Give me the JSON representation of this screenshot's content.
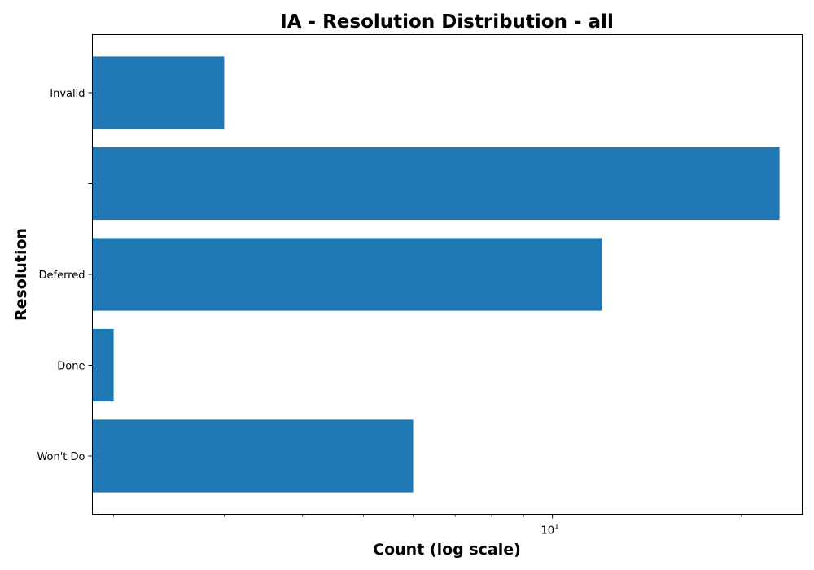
{
  "chart_data": {
    "type": "bar",
    "orientation": "horizontal",
    "title": "IA - Resolution Distribution - all",
    "xlabel": "Count (log scale)",
    "ylabel": "Resolution",
    "x_scale": "log",
    "xlim": [
      1.85,
      25
    ],
    "categories": [
      "Invalid",
      "",
      "Deferred",
      "Done",
      "Won't Do"
    ],
    "values": [
      3,
      23,
      12,
      2,
      6
    ],
    "bar_color": "#1f77b4",
    "x_major_ticks": [
      {
        "value": 10,
        "base": "10",
        "exponent": "1"
      }
    ],
    "x_minor_ticks": [
      2,
      3,
      4,
      5,
      6,
      7,
      8,
      9,
      20
    ],
    "grid": false,
    "legend": "none"
  }
}
